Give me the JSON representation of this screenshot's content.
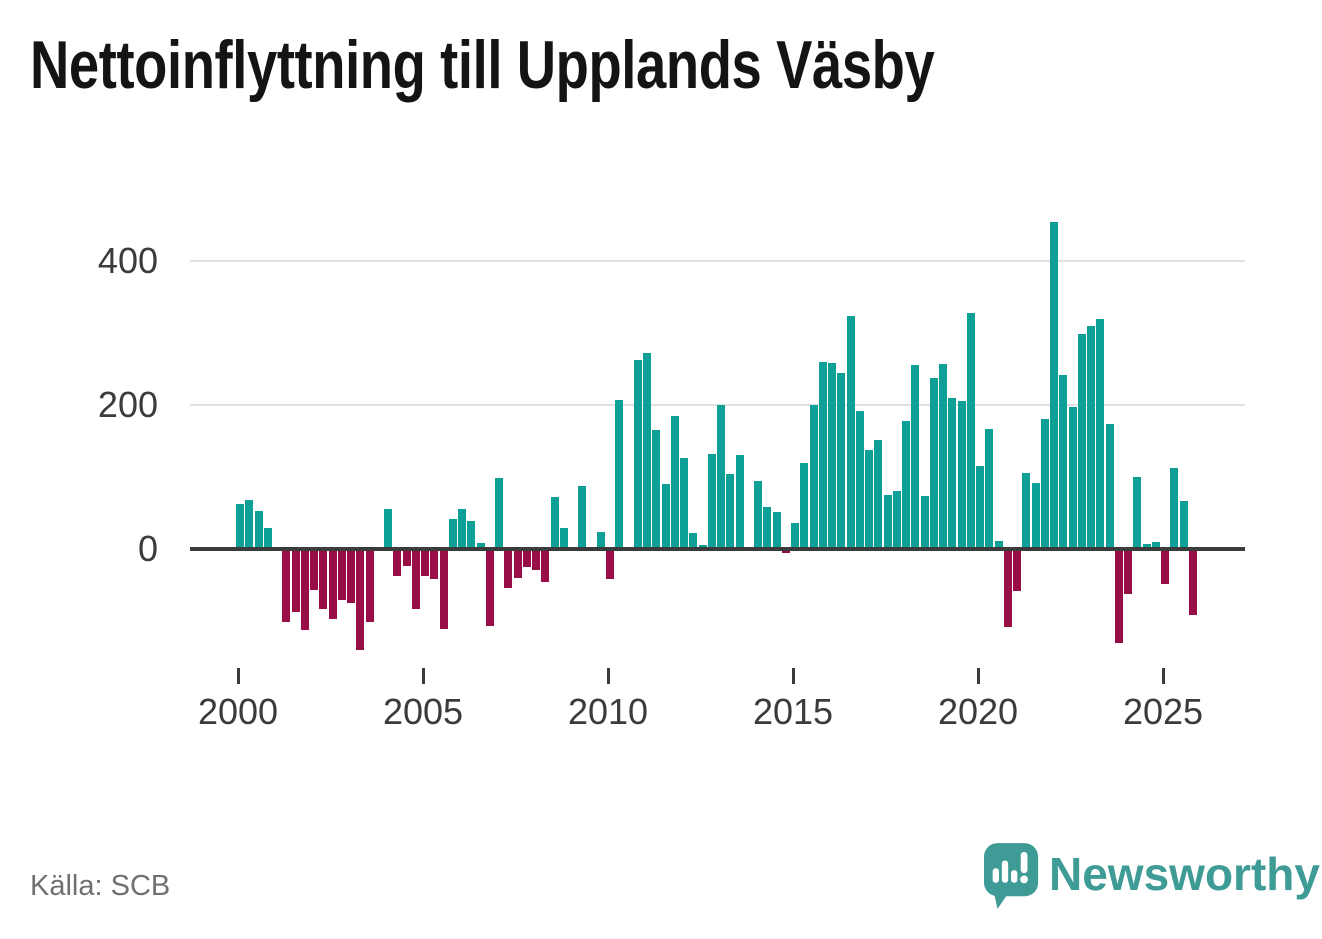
{
  "title": "Nettoinflyttning till Upplands Väsby",
  "source": "Källa: SCB",
  "branding": {
    "name": "Newsworthy",
    "icon": "newsworthy-bubble-chart-icon"
  },
  "colors": {
    "bar_positive": "#0da096",
    "bar_negative": "#9a0e47",
    "axis": "#3b3b3b",
    "grid": "#e1e1e1",
    "title_text": "#141414",
    "axis_label": "#3b3b3b",
    "source_text": "#707070",
    "brand_teal": "#3f9b96",
    "background": "#ffffff"
  },
  "chart_data": {
    "type": "bar",
    "title": "Nettoinflyttning till Upplands Väsby",
    "x_tick_labels": [
      "2000",
      "2005",
      "2010",
      "2015",
      "2020",
      "2025"
    ],
    "y_ticks": [
      0,
      200,
      400
    ],
    "y_tick_labels": [
      "0",
      "200",
      "400"
    ],
    "ylim": [
      -160,
      490
    ],
    "grid": "horizontal-only",
    "legend": "none",
    "bar_period": "quarterly",
    "years": [
      {
        "year": 2000,
        "values": [
          63,
          68,
          53,
          29
        ]
      },
      {
        "year": 2001,
        "values": [
          0,
          -102,
          -87,
          -112
        ]
      },
      {
        "year": 2002,
        "values": [
          -57,
          -83,
          -97,
          -71
        ]
      },
      {
        "year": 2003,
        "values": [
          -75,
          -140,
          -101,
          0
        ]
      },
      {
        "year": 2004,
        "values": [
          55,
          -37,
          -23,
          -83
        ]
      },
      {
        "year": 2005,
        "values": [
          -37,
          -42,
          -111,
          41
        ]
      },
      {
        "year": 2006,
        "values": [
          55,
          39,
          8,
          -107
        ]
      },
      {
        "year": 2007,
        "values": [
          99,
          -54,
          -40,
          -25
        ]
      },
      {
        "year": 2008,
        "values": [
          -29,
          -46,
          72,
          29
        ]
      },
      {
        "year": 2009,
        "values": [
          0,
          87,
          0,
          24
        ]
      },
      {
        "year": 2010,
        "values": [
          -41,
          207,
          0,
          262
        ]
      },
      {
        "year": 2011,
        "values": [
          272,
          165,
          90,
          185
        ]
      },
      {
        "year": 2012,
        "values": [
          126,
          22,
          5,
          132
        ]
      },
      {
        "year": 2013,
        "values": [
          200,
          104,
          130,
          0
        ]
      },
      {
        "year": 2014,
        "values": [
          94,
          58,
          51,
          -5
        ]
      },
      {
        "year": 2015,
        "values": [
          36,
          119,
          200,
          260
        ]
      },
      {
        "year": 2016,
        "values": [
          259,
          244,
          324,
          192
        ]
      },
      {
        "year": 2017,
        "values": [
          138,
          151,
          75,
          80
        ]
      },
      {
        "year": 2018,
        "values": [
          178,
          256,
          73,
          237
        ]
      },
      {
        "year": 2019,
        "values": [
          257,
          210,
          206,
          328
        ]
      },
      {
        "year": 2020,
        "values": [
          115,
          166,
          11,
          -109
        ]
      },
      {
        "year": 2021,
        "values": [
          -58,
          106,
          92,
          181
        ]
      },
      {
        "year": 2022,
        "values": [
          454,
          241,
          197,
          298
        ]
      },
      {
        "year": 2023,
        "values": [
          310,
          320,
          174,
          -130
        ]
      },
      {
        "year": 2024,
        "values": [
          -63,
          100,
          7,
          10
        ]
      },
      {
        "year": 2025,
        "values": [
          -49,
          112,
          67,
          -91
        ]
      }
    ]
  }
}
